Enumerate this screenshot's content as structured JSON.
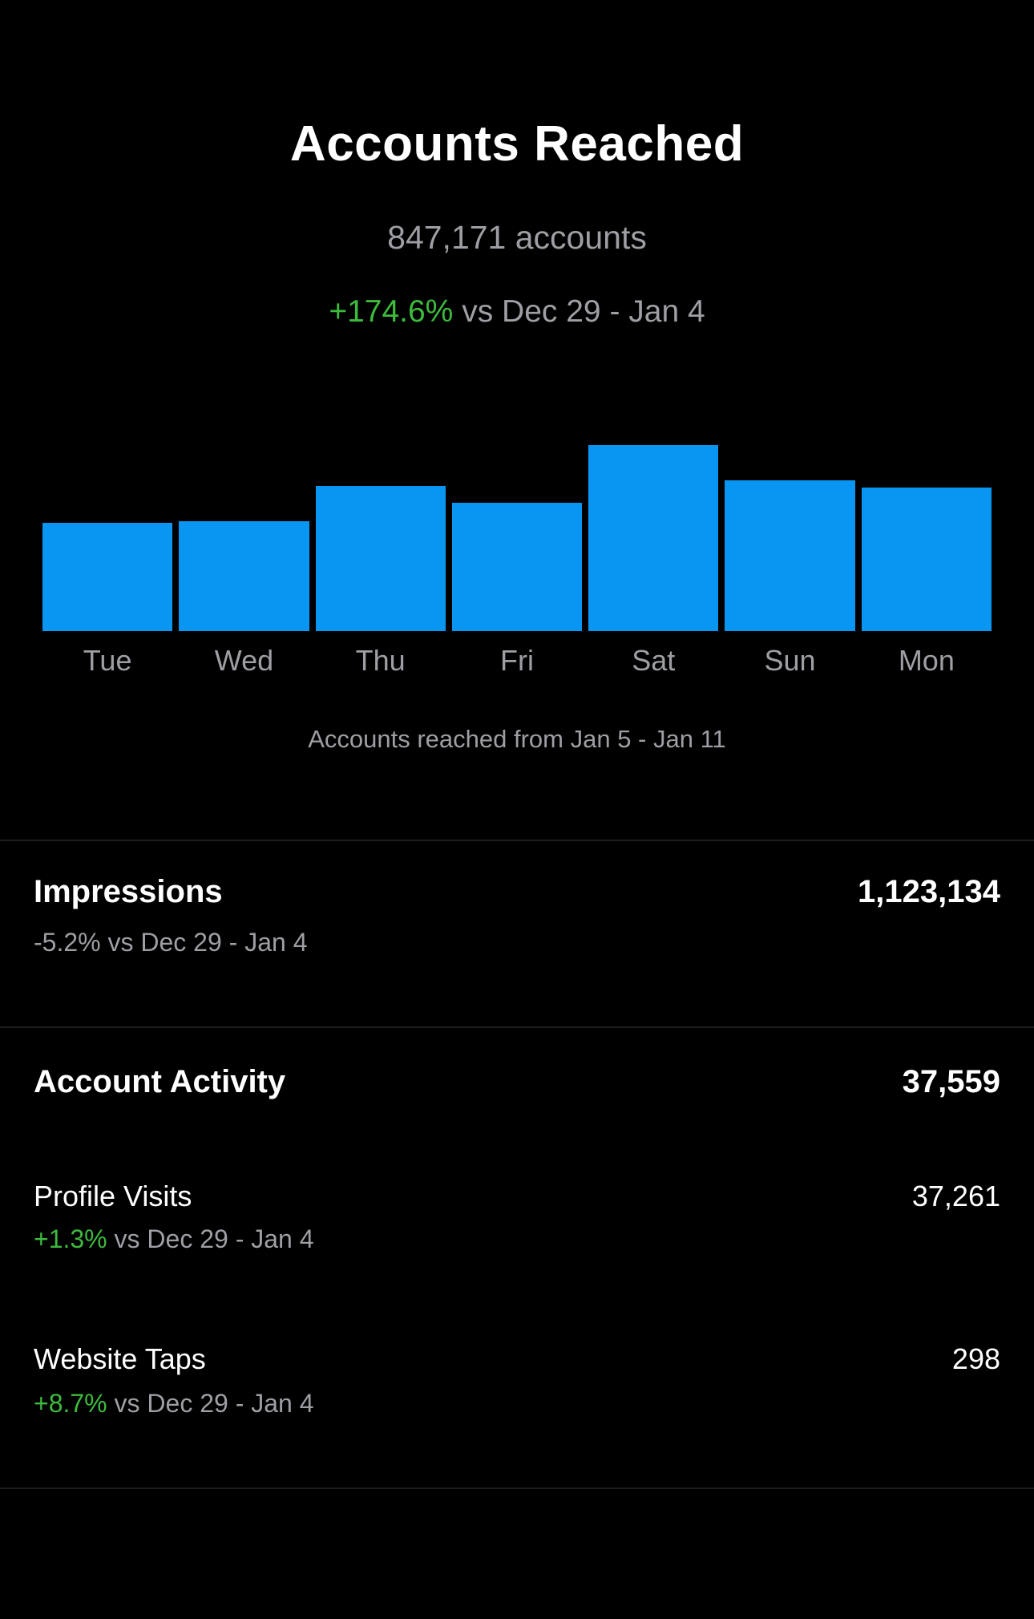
{
  "header": {
    "title": "Accounts Reached",
    "total": "847,171 accounts",
    "delta_pct": "+174.6%",
    "delta_rest": " vs Dec 29 - Jan 4"
  },
  "chart": {
    "caption": "Accounts reached from Jan 5 - Jan 11"
  },
  "chart_data": {
    "type": "bar",
    "title": "Accounts reached from Jan 5 - Jan 11",
    "categories": [
      "Tue",
      "Wed",
      "Thu",
      "Fri",
      "Sat",
      "Sun",
      "Mon"
    ],
    "values": [
      58,
      59,
      78,
      69,
      100,
      81,
      77
    ],
    "value_units": "percent of tallest bar (y-axis unlabeled in source)",
    "total_label": "847,171 accounts",
    "xlabel": "",
    "ylabel": "",
    "ylim": [
      0,
      100
    ],
    "grid": false,
    "legend": "none",
    "bar_color": "#0995f2"
  },
  "sections": {
    "impressions": {
      "label": "Impressions",
      "value": "1,123,134",
      "delta_pct": "-5.2%",
      "delta_rest": " vs Dec 29 - Jan 4"
    },
    "account_activity": {
      "label": "Account Activity",
      "value": "37,559"
    },
    "profile_visits": {
      "label": "Profile Visits",
      "value": "37,261",
      "delta_pct": "+1.3%",
      "delta_rest": " vs Dec 29 - Jan 4"
    },
    "website_taps": {
      "label": "Website Taps",
      "value": "298",
      "delta_pct": "+8.7%",
      "delta_rest": " vs Dec 29 - Jan 4"
    }
  },
  "colors": {
    "background": "#000000",
    "accent_blue": "#0995f2",
    "positive_green": "#3dbb3d",
    "secondary_text": "#9e9ea4",
    "divider": "#1c1c1e"
  }
}
